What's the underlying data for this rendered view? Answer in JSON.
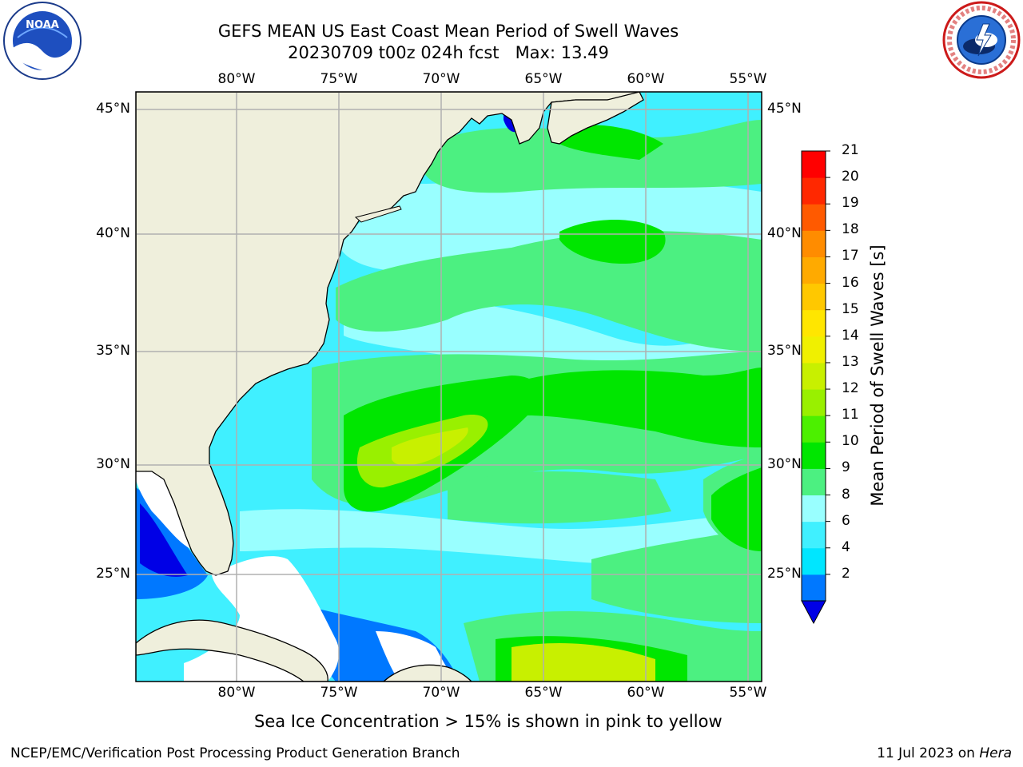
{
  "title": {
    "line1": "GEFS MEAN US East Coast Mean Period of Swell Waves",
    "line2": "20230709 t00z 024h fcst   Max: 13.49"
  },
  "logos": {
    "left": {
      "icon": "noaa-logo",
      "text": "NOAA"
    },
    "right": {
      "icon": "national-weather-service-logo"
    }
  },
  "map": {
    "lon_labels": [
      "80°W",
      "75°W",
      "70°W",
      "65°W",
      "60°W",
      "55°W"
    ],
    "lat_labels": [
      "45°N",
      "40°N",
      "35°N",
      "30°N",
      "25°N"
    ],
    "land_color": "#efefdc",
    "grid_color": "#b0b0b0"
  },
  "colorbar": {
    "label": "Mean Period of Swell Waves [s]",
    "ticks": [
      "21",
      "20",
      "19",
      "18",
      "17",
      "16",
      "15",
      "14",
      "13",
      "12",
      "11",
      "10",
      "9",
      "8",
      "6",
      "4",
      "2"
    ],
    "colors": [
      "#0000e6",
      "#0078ff",
      "#00e6ff",
      "#40f0ff",
      "#99ffff",
      "#4cf081",
      "#00e600",
      "#4cf000",
      "#99f000",
      "#c8f000",
      "#f0f000",
      "#ffe600",
      "#ffc800",
      "#ffaa00",
      "#ff8c00",
      "#ff5a00",
      "#ff2800",
      "#ff0000"
    ]
  },
  "footer": {
    "note": "Sea Ice Concentration > 15% is shown in pink to yellow",
    "credit_left": "NCEP/EMC/Verification Post Processing Product Generation Branch",
    "credit_right_date": "11 Jul 2023 on ",
    "credit_right_machine": "Hera"
  }
}
